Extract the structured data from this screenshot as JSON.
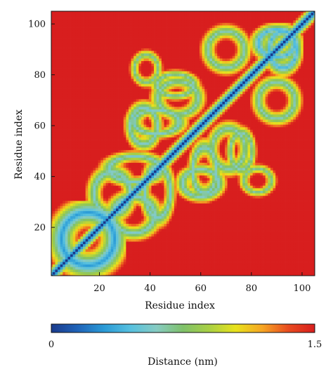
{
  "chart_data": {
    "type": "heatmap",
    "title": "",
    "xlabel": "Residue index",
    "ylabel": "Residue index",
    "xlim": [
      1,
      105
    ],
    "ylim": [
      1,
      105
    ],
    "xticks": [
      20,
      40,
      60,
      80,
      100
    ],
    "yticks": [
      20,
      40,
      60,
      80,
      100
    ],
    "grid": false,
    "value_range": [
      0,
      1.5
    ],
    "colorbar": {
      "label": "Distance (nm)",
      "min_label": "0",
      "max_label": "1.5",
      "colors": [
        "#1a3a8c",
        "#1f63b8",
        "#2a9ad6",
        "#56c0df",
        "#86cbc2",
        "#7fc16a",
        "#a9d043",
        "#e8e21c",
        "#f6a623",
        "#e84b1f",
        "#d81e1e"
      ]
    },
    "description_of_values": "contact map: distance ~0 on the diagonal, ~1.5 nm saturated elsewhere except close-contact loops",
    "diagonal_value": 0,
    "background_value": 1.5,
    "contact_regions": [
      {
        "i": [
          1,
          30
        ],
        "j": [
          1,
          30
        ],
        "min_distance": 0.3,
        "note": "near-diagonal wedge at low indices"
      },
      {
        "i": [
          22,
          45
        ],
        "j": [
          15,
          35
        ],
        "min_distance": 0.55
      },
      {
        "i": [
          20,
          48
        ],
        "j": [
          36,
          50
        ],
        "min_distance": 0.55
      },
      {
        "i": [
          30,
          55
        ],
        "j": [
          55,
          68
        ],
        "min_distance": 0.55
      },
      {
        "i": [
          50,
          70
        ],
        "j": [
          30,
          45
        ],
        "min_distance": 0.55
      },
      {
        "i": [
          40,
          60
        ],
        "j": [
          70,
          82
        ],
        "min_distance": 0.6
      },
      {
        "i": [
          62,
          80
        ],
        "j": [
          40,
          62
        ],
        "min_distance": 0.6
      },
      {
        "i": [
          75,
          90
        ],
        "j": [
          32,
          45
        ],
        "min_distance": 0.65
      },
      {
        "i": [
          80,
          100
        ],
        "j": [
          60,
          80
        ],
        "min_distance": 0.6
      },
      {
        "i": [
          85,
          100
        ],
        "j": [
          80,
          100
        ],
        "min_distance": 0.4
      }
    ]
  }
}
